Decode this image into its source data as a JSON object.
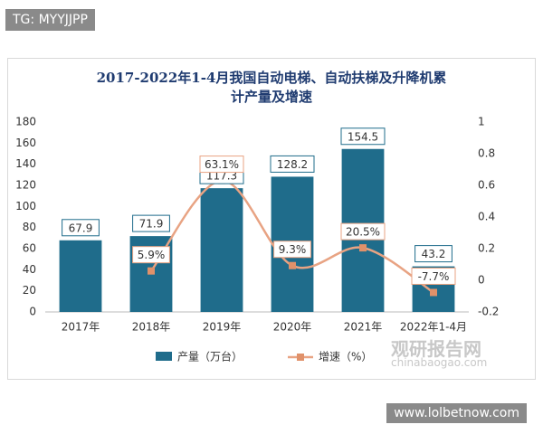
{
  "watermarks": [
    "TG: MYYJJPP",
    "观研报告网",
    "chinabaogao.com",
    "www.lolbetnow.com"
  ],
  "chart_data": {
    "type": "bar-line",
    "title": "2017-2022年1-4月我国自动电梯、自动扶梯及升降机累计产量及增速",
    "categories": [
      "2017年",
      "2018年",
      "2019年",
      "2020年",
      "2021年",
      "2022年1-4月"
    ],
    "series": [
      {
        "name": "产量（万台）",
        "color": "#1f6c8b",
        "values": [
          67.9,
          71.9,
          117.3,
          128.2,
          154.5,
          43.2
        ]
      },
      {
        "name": "增速（%）",
        "color": "#e8a383",
        "axis": "y2",
        "values": [
          null,
          0.059,
          0.631,
          0.093,
          0.205,
          -0.077
        ],
        "value_labels": [
          null,
          "5.9%",
          "63.1%",
          "9.3%",
          "20.5%",
          "-7.7%"
        ]
      }
    ],
    "ylim": [
      0,
      180
    ],
    "yticks": [
      0,
      20,
      40,
      60,
      80,
      100,
      120,
      140,
      160,
      180
    ],
    "y2lim": [
      -0.2,
      1
    ],
    "y2ticks": [
      -0.2,
      0,
      0.2,
      0.4,
      0.6,
      0.8,
      1
    ],
    "grid": false,
    "legend": "bottom"
  }
}
